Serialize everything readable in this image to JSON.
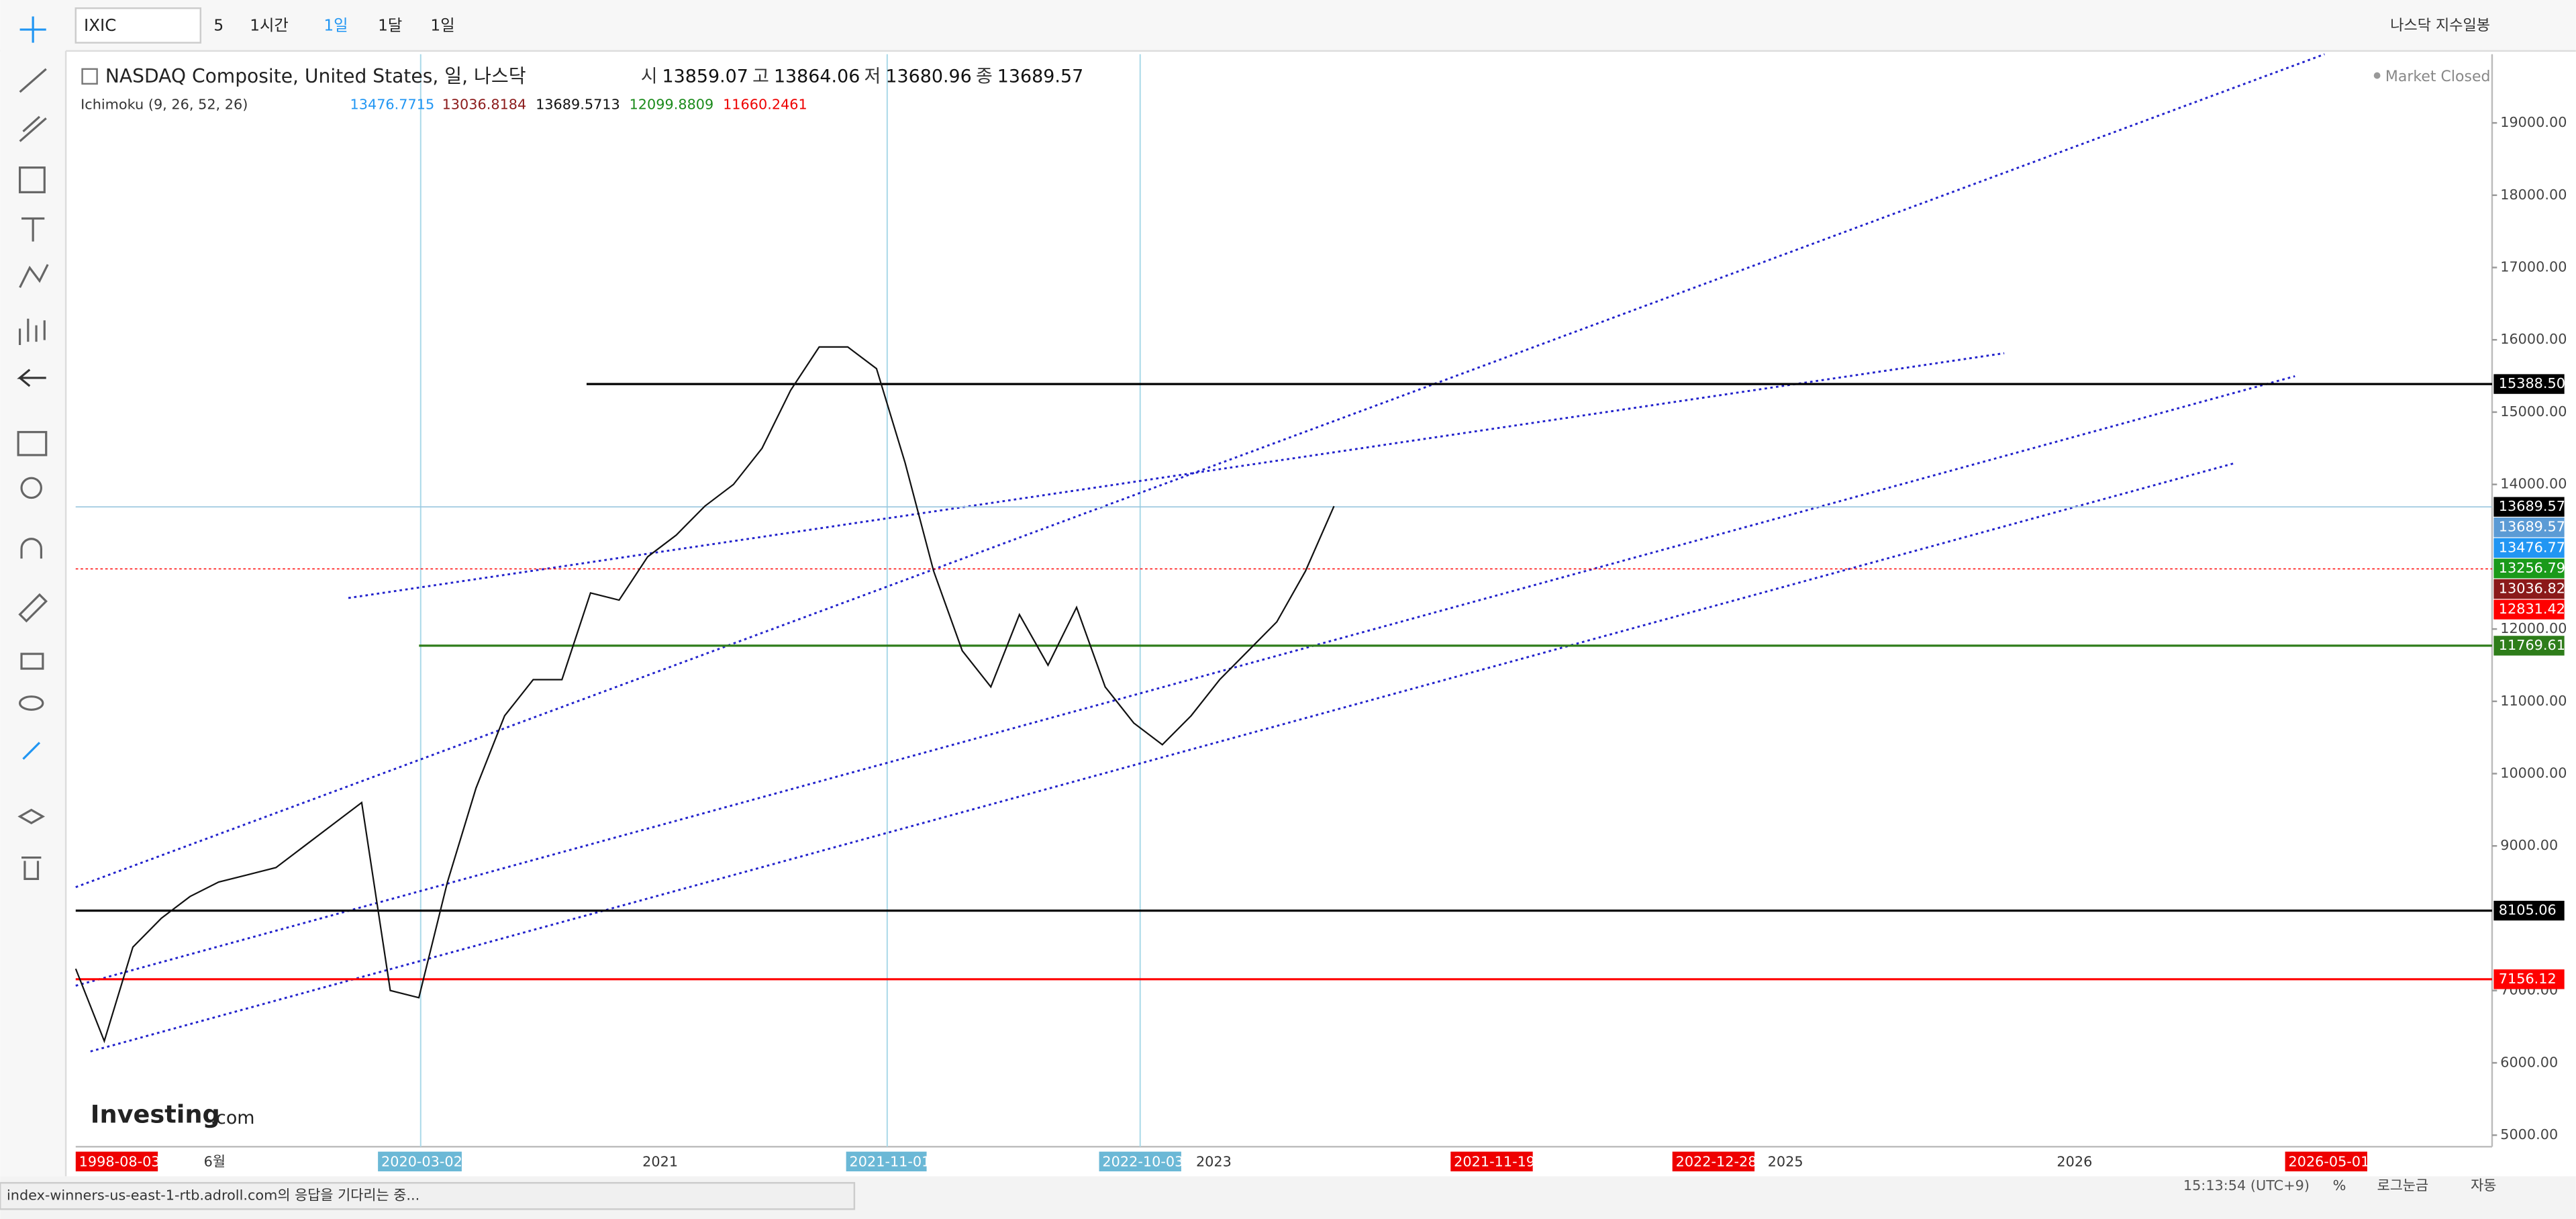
{
  "toolbar": {
    "symbol": "IXIC",
    "buttons": [
      "5",
      "1시간",
      "1일",
      "1달",
      "1일"
    ],
    "template": "나스닥 지수일봉"
  },
  "header": {
    "title": "NASDAQ Composite, United States, 일, 나스닥",
    "ohlc": [
      {
        "label": "시",
        "value": "13859.07"
      },
      {
        "label": "고",
        "value": "13864.06"
      },
      {
        "label": "저",
        "value": "13680.96"
      },
      {
        "label": "종",
        "value": "13689.57"
      }
    ],
    "indicator": "Ichimoku (9, 26, 52, 26)",
    "indicator_values": [
      "13476.7715",
      "13036.8184",
      "13689.5713",
      "12099.8809",
      "11660.2461"
    ],
    "status": "Market Closed"
  },
  "chart_data": {
    "type": "line",
    "series": [
      {
        "name": "IXIC",
        "color": "#111111",
        "values": [
          7300,
          6300,
          7600,
          8000,
          8300,
          8500,
          8600,
          8700,
          9000,
          9300,
          9600,
          7000,
          6900,
          8500,
          9800,
          10800,
          11300,
          11300,
          12500,
          12400,
          13000,
          13300,
          13700,
          14000,
          14500,
          15300,
          15900,
          15900,
          15600,
          14300,
          12800,
          11700,
          11200,
          12200,
          11500,
          12300,
          11200,
          10700,
          10400,
          10800,
          11300,
          11700,
          12100,
          12800,
          13700
        ]
      }
    ],
    "ylim": [
      4840,
      19950
    ],
    "yticks": [
      {
        "value": 5000,
        "label": "5000.00"
      },
      {
        "value": 6000,
        "label": "6000.00"
      },
      {
        "value": 7000,
        "label": "7000.00"
      },
      {
        "value": 9000,
        "label": "9000.00"
      },
      {
        "value": 10000,
        "label": "10000.00"
      },
      {
        "value": 11000,
        "label": "11000.00"
      },
      {
        "value": 12000,
        "label": "12000.00"
      },
      {
        "value": 14000,
        "label": "14000.00"
      },
      {
        "value": 15000,
        "label": "15000.00"
      },
      {
        "value": 16000,
        "label": "16000.00"
      },
      {
        "value": 17000,
        "label": "17000.00"
      },
      {
        "value": 18000,
        "label": "18000.00"
      },
      {
        "value": 19000,
        "label": "19000.00"
      }
    ],
    "price_lines": [
      {
        "value": 15388.5,
        "label": "15388.50",
        "color": "#000000",
        "style": "solid"
      },
      {
        "value": 13689.57,
        "label": "13689.57",
        "color": "#000000",
        "style": "thin"
      },
      {
        "value": 13689.57,
        "label": "13689.57",
        "color": "#5b9bd5",
        "style": "thin"
      },
      {
        "value": 13476.77,
        "label": "13476.77",
        "color": "#2196f3",
        "style": "none"
      },
      {
        "value": 13256.79,
        "label": "13256.79",
        "color": "#1a9a1a",
        "style": "none"
      },
      {
        "value": 13036.82,
        "label": "13036.82",
        "color": "#8b1a1a",
        "style": "none"
      },
      {
        "value": 12831.42,
        "label": "12831.42",
        "color": "#ff0000",
        "style": "dotted"
      },
      {
        "value": 11769.61,
        "label": "11769.61",
        "color": "#2e7d1a",
        "style": "solid"
      },
      {
        "value": 8105.06,
        "label": "8105.06",
        "color": "#000000",
        "style": "solid"
      },
      {
        "value": 7156.12,
        "label": "7156.12",
        "color": "#ff0000",
        "style": "solid"
      }
    ],
    "x_labels": [
      "1998-08-03",
      "6월",
      "2020-03-02",
      "2021",
      "2021-11-01",
      "2022-10-03",
      "2023",
      "2021-11-19",
      "2022-12-28",
      "2025",
      "2026",
      "2026-05-01"
    ]
  },
  "status_bar": {
    "time": "15:13:54 (UTC+9)",
    "items": [
      "%",
      "로그눈금",
      "자동"
    ],
    "message": "index-winners-us-east-1-rtb.adroll.com의 응답을 기다리는 중..."
  },
  "logo": {
    "main": "Investing",
    ".com": ".com"
  }
}
